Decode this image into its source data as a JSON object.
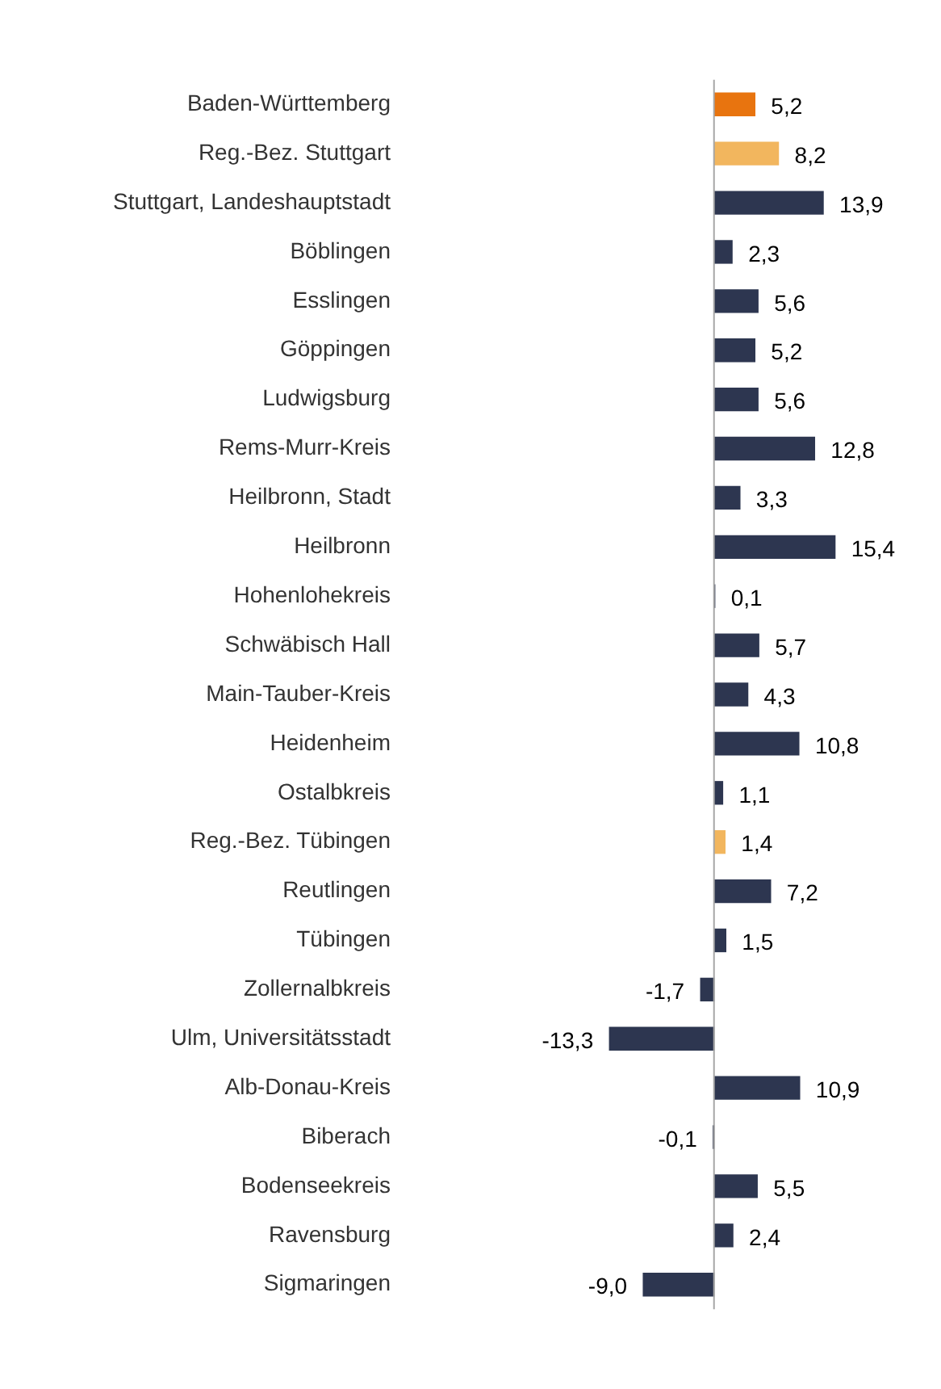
{
  "chart_data": {
    "type": "bar",
    "orientation": "horizontal",
    "categories": [
      "Baden-Württemberg",
      "Reg.-Bez. Stuttgart",
      "Stuttgart, Landeshauptstadt",
      "Böblingen",
      "Esslingen",
      "Göppingen",
      "Ludwigsburg",
      "Rems-Murr-Kreis",
      "Heilbronn, Stadt",
      "Heilbronn",
      "Hohenlohekreis",
      "Schwäbisch Hall",
      "Main-Tauber-Kreis",
      "Heidenheim",
      "Ostalbkreis",
      "Reg.-Bez. Tübingen",
      "Reutlingen",
      "Tübingen",
      "Zollernalbkreis",
      "Ulm, Universitätsstadt",
      "Alb-Donau-Kreis",
      "Biberach",
      "Bodenseekreis",
      "Ravensburg",
      "Sigmaringen"
    ],
    "values": [
      5.2,
      8.2,
      13.9,
      2.3,
      5.6,
      5.2,
      5.6,
      12.8,
      3.3,
      15.4,
      0.1,
      5.7,
      4.3,
      10.8,
      1.1,
      1.4,
      7.2,
      1.5,
      -1.7,
      -13.3,
      10.9,
      -0.1,
      5.5,
      2.4,
      -9.0
    ],
    "colors": [
      "#e8740f",
      "#f2b65e",
      "#2d3650",
      "#2d3650",
      "#2d3650",
      "#2d3650",
      "#2d3650",
      "#2d3650",
      "#2d3650",
      "#2d3650",
      "#2d3650",
      "#2d3650",
      "#2d3650",
      "#2d3650",
      "#2d3650",
      "#f2b65e",
      "#2d3650",
      "#2d3650",
      "#2d3650",
      "#2d3650",
      "#2d3650",
      "#2d3650",
      "#2d3650",
      "#2d3650",
      "#2d3650"
    ],
    "value_labels": [
      "5,2",
      "8,2",
      "13,9",
      "2,3",
      "5,6",
      "5,2",
      "5,6",
      "12,8",
      "3,3",
      "15,4",
      "0,1",
      "5,7",
      "4,3",
      "10,8",
      "1,1",
      "1,4",
      "7,2",
      "1,5",
      "-1,7",
      "-13,3",
      "10,9",
      "-0,1",
      "5,5",
      "2,4",
      "-9,0"
    ],
    "legend": false
  }
}
